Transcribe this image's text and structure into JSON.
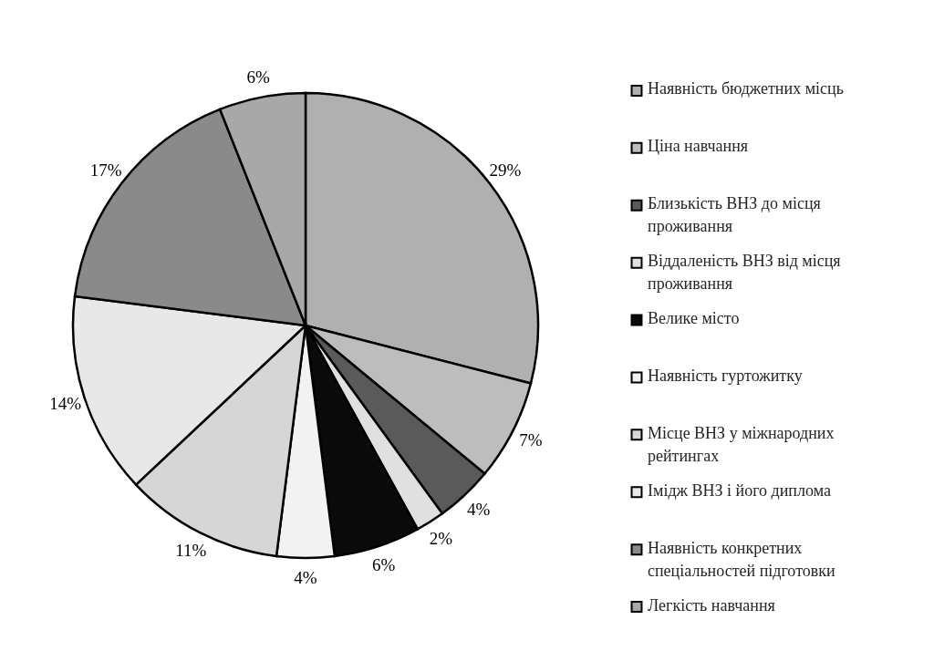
{
  "chart_data": {
    "type": "pie",
    "categories": [
      "Наявність бюджетних місць",
      "Ціна навчання",
      "Близькість ВНЗ до місця проживання",
      "Віддаленість ВНЗ від місця проживання",
      "Велике місто",
      "Наявність гуртожитку",
      "Місце ВНЗ у міжнародних рейтингах",
      "Імідж ВНЗ і його диплома",
      "Наявність конкретних спеціальностей підготовки",
      "Легкість навчання"
    ],
    "values": [
      29,
      7,
      4,
      2,
      6,
      4,
      11,
      14,
      17,
      6
    ],
    "colors": [
      "#b0b0b0",
      "#bdbdbd",
      "#5a5a5a",
      "#e0e0e0",
      "#0a0a0a",
      "#f2f2f2",
      "#d6d6d6",
      "#e8e8e8",
      "#8a8a8a",
      "#a8a8a8"
    ],
    "value_labels": [
      "29%",
      "7%",
      "4%",
      "2%",
      "6%",
      "4%",
      "11%",
      "14%",
      "17%",
      "6%"
    ],
    "legend": "right"
  }
}
